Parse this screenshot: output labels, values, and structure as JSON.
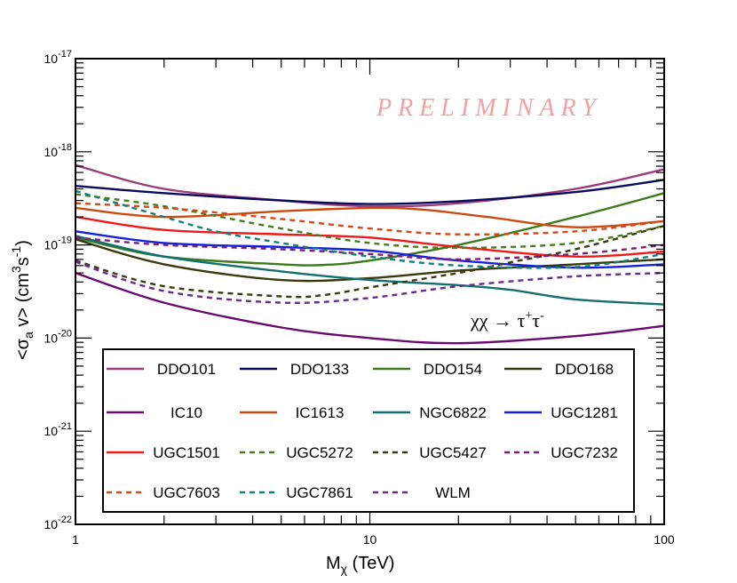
{
  "chart_data": {
    "type": "line",
    "xscale": "log",
    "yscale": "log",
    "xlim": [
      1,
      100
    ],
    "ylim": [
      1e-22,
      1e-17
    ],
    "xlabel": {
      "main": "M",
      "sub": "χ",
      "tail": " (TeV)"
    },
    "ylabel": {
      "t1": "<σ",
      "sub": "a",
      "t2": " v> (cm",
      "sup1": "3",
      "t3": "s",
      "sup2": "-1",
      "t4": ")"
    },
    "x_ticks": [
      {
        "value": 1,
        "label": "1"
      },
      {
        "value": 10,
        "label": "10"
      },
      {
        "value": 100,
        "label": "100"
      }
    ],
    "y_ticks": [
      {
        "value": 1e-22,
        "base": "10",
        "exp": "-22"
      },
      {
        "value": 1e-21,
        "base": "10",
        "exp": "-21"
      },
      {
        "value": 1e-20,
        "base": "10",
        "exp": "-20"
      },
      {
        "value": 1e-19,
        "base": "10",
        "exp": "-19"
      },
      {
        "value": 1e-18,
        "base": "10",
        "exp": "-18"
      },
      {
        "value": 1e-17,
        "base": "10",
        "exp": "-17"
      }
    ],
    "annotations": {
      "preliminary": "PRELIMINARY",
      "channel": {
        "a": "χχ → τ",
        "sup1": "+",
        "b": "τ",
        "sup2": "-"
      }
    },
    "series": [
      {
        "name": "DDO101",
        "color": "#9b3d78",
        "dash": "solid",
        "x": [
          1,
          2,
          5,
          10,
          20,
          50,
          100
        ],
        "y": [
          7.2e-19,
          4e-19,
          3e-19,
          2.6e-19,
          2.8e-19,
          4e-19,
          6.5e-19
        ]
      },
      {
        "name": "DDO133",
        "color": "#0b0b5e",
        "dash": "solid",
        "x": [
          1,
          2,
          5,
          10,
          20,
          50,
          100
        ],
        "y": [
          4.3e-19,
          3.6e-19,
          3e-19,
          2.75e-19,
          2.95e-19,
          3.7e-19,
          5e-19
        ]
      },
      {
        "name": "DDO154",
        "color": "#3c7a1a",
        "dash": "solid",
        "x": [
          1,
          2,
          5,
          7,
          10,
          20,
          50,
          100
        ],
        "y": [
          1.2e-19,
          7.5e-20,
          6.2e-20,
          6.1e-20,
          6.8e-20,
          1e-19,
          2e-19,
          3.6e-19
        ]
      },
      {
        "name": "DDO168",
        "color": "#3a3a10",
        "dash": "solid",
        "x": [
          1,
          2,
          5,
          10,
          20,
          50,
          100
        ],
        "y": [
          1.15e-19,
          6.2e-20,
          4.2e-20,
          4.4e-20,
          5.3e-20,
          6.2e-20,
          7e-20
        ]
      },
      {
        "name": "IC10",
        "color": "#6a0a6e",
        "dash": "solid",
        "x": [
          1,
          2,
          5,
          10,
          20,
          50,
          100
        ],
        "y": [
          5e-20,
          2.4e-20,
          1.3e-20,
          1e-20,
          8.8e-21,
          1.05e-20,
          1.35e-20
        ]
      },
      {
        "name": "IC1613",
        "color": "#cc4a10",
        "dash": "solid",
        "x": [
          1,
          2,
          5,
          10,
          15,
          25,
          50,
          100
        ],
        "y": [
          2.5e-19,
          2e-19,
          2.3e-19,
          2.5e-19,
          2.4e-19,
          2e-19,
          1.55e-19,
          1.8e-19
        ]
      },
      {
        "name": "NGC6822",
        "color": "#137070",
        "dash": "solid",
        "x": [
          1,
          2,
          5,
          10,
          20,
          30,
          50,
          100
        ],
        "y": [
          1.25e-19,
          7.5e-20,
          5.2e-20,
          4.2e-20,
          3.7e-20,
          3.3e-20,
          2.6e-20,
          2.3e-20
        ]
      },
      {
        "name": "UGC1281",
        "color": "#1520e0",
        "dash": "solid",
        "x": [
          1,
          2,
          5,
          10,
          20,
          50,
          100
        ],
        "y": [
          1.4e-19,
          1.05e-19,
          9.5e-20,
          8.7e-20,
          6.8e-20,
          5.7e-20,
          6.2e-20
        ]
      },
      {
        "name": "UGC1501",
        "color": "#ee1a1a",
        "dash": "solid",
        "x": [
          1,
          2,
          5,
          10,
          20,
          50,
          100
        ],
        "y": [
          2e-19,
          1.45e-19,
          1.3e-19,
          1.2e-19,
          9.5e-20,
          7.5e-20,
          8.5e-20
        ]
      },
      {
        "name": "UGC5272",
        "color": "#4a7a1a",
        "dash": "dash",
        "x": [
          1,
          2,
          5,
          10,
          20,
          50,
          100
        ],
        "y": [
          3.5e-19,
          2.6e-19,
          1.5e-19,
          1.05e-19,
          9.3e-20,
          1.05e-19,
          1.6e-19
        ]
      },
      {
        "name": "UGC5427",
        "color": "#3a3a10",
        "dash": "dash",
        "x": [
          1,
          2,
          5,
          7,
          10,
          20,
          30,
          50,
          100
        ],
        "y": [
          6.8e-20,
          3.6e-20,
          2.8e-20,
          2.9e-20,
          3.5e-20,
          5e-20,
          6.5e-20,
          9e-20,
          1.6e-19
        ]
      },
      {
        "name": "UGC7232",
        "color": "#7a1e7a",
        "dash": "dash",
        "x": [
          1,
          2,
          5,
          10,
          20,
          50,
          100
        ],
        "y": [
          1.2e-19,
          1e-19,
          9e-20,
          8e-20,
          7e-20,
          8e-20,
          1e-19
        ]
      },
      {
        "name": "UGC7603",
        "color": "#d24a1a",
        "dash": "dash",
        "x": [
          1,
          2,
          5,
          10,
          20,
          50,
          100
        ],
        "y": [
          2.8e-19,
          2.5e-19,
          1.9e-19,
          1.5e-19,
          1.3e-19,
          1.4e-19,
          1.8e-19
        ]
      },
      {
        "name": "UGC7861",
        "color": "#14807a",
        "dash": "dash",
        "x": [
          1,
          2,
          3,
          5,
          10,
          20,
          50,
          100
        ],
        "y": [
          3.8e-19,
          2e-19,
          1.4e-19,
          1.05e-19,
          7.5e-20,
          6e-20,
          5.8e-20,
          8e-20
        ]
      },
      {
        "name": "WLM",
        "color": "#6a2a8a",
        "dash": "dash",
        "x": [
          1,
          2,
          5,
          10,
          20,
          50,
          100
        ],
        "y": [
          6.6e-20,
          3.2e-20,
          2.4e-20,
          2.7e-20,
          3.6e-20,
          4.6e-20,
          5e-20
        ]
      }
    ]
  }
}
